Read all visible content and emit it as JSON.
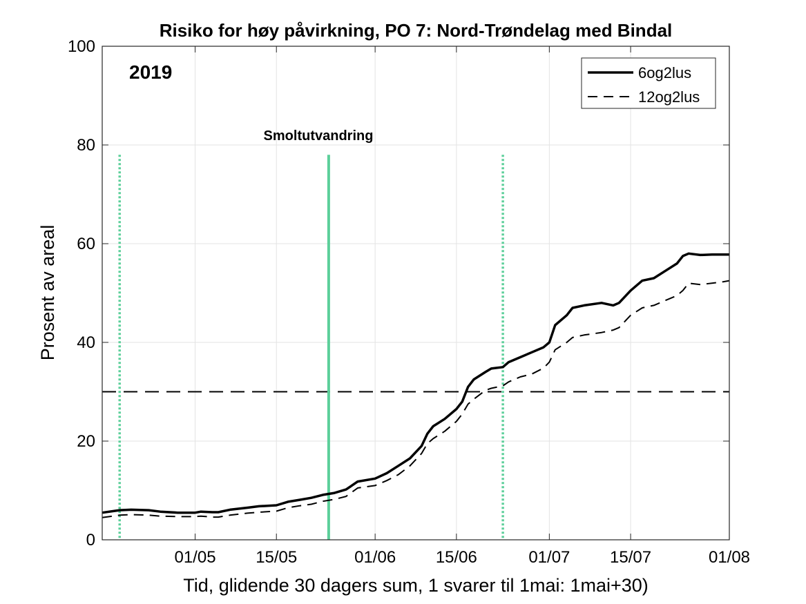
{
  "chart_data": {
    "type": "line",
    "title": "Risiko for høy påvirkning, PO 7: Nord-Trøndelag med Bindal",
    "xlabel": "Tid, glidende 30 dagers sum, 1 svarer til 1mai: 1mai+30)",
    "ylabel": "Prosent av areal",
    "year_label": "2019",
    "annotation": "Smoltutvandring",
    "xlim": [
      "2019-04-15",
      "2019-08-01"
    ],
    "ylim": [
      0,
      100
    ],
    "x_ticks": [
      {
        "date": "2019-05-01",
        "label": "01/05"
      },
      {
        "date": "2019-05-15",
        "label": "15/05"
      },
      {
        "date": "2019-06-01",
        "label": "01/06"
      },
      {
        "date": "2019-06-15",
        "label": "15/06"
      },
      {
        "date": "2019-07-01",
        "label": "01/07"
      },
      {
        "date": "2019-07-15",
        "label": "15/07"
      },
      {
        "date": "2019-08-01",
        "label": "01/08"
      }
    ],
    "y_ticks": [
      0,
      20,
      40,
      60,
      80,
      100
    ],
    "grid": true,
    "legend_position": "top-right",
    "threshold": {
      "y": 30,
      "style": "dashed",
      "color": "#000000"
    },
    "vlines": [
      {
        "date": "2019-04-18",
        "style": "dotted",
        "color": "#5ccf9a"
      },
      {
        "date": "2019-05-24",
        "style": "solid",
        "color": "#5ccf9a"
      },
      {
        "date": "2019-06-23",
        "style": "dotted",
        "color": "#5ccf9a"
      }
    ],
    "series": [
      {
        "name": "6og2lus",
        "style": "solid",
        "color": "#000000",
        "points": [
          [
            "2019-04-15",
            5.5
          ],
          [
            "2019-04-18",
            6.0
          ],
          [
            "2019-04-20",
            6.1
          ],
          [
            "2019-04-23",
            6.0
          ],
          [
            "2019-04-25",
            5.7
          ],
          [
            "2019-04-28",
            5.5
          ],
          [
            "2019-05-01",
            5.5
          ],
          [
            "2019-05-02",
            5.7
          ],
          [
            "2019-05-04",
            5.6
          ],
          [
            "2019-05-05",
            5.6
          ],
          [
            "2019-05-07",
            6.1
          ],
          [
            "2019-05-10",
            6.5
          ],
          [
            "2019-05-12",
            6.8
          ],
          [
            "2019-05-15",
            7.0
          ],
          [
            "2019-05-17",
            7.7
          ],
          [
            "2019-05-19",
            8.1
          ],
          [
            "2019-05-21",
            8.5
          ],
          [
            "2019-05-23",
            9.1
          ],
          [
            "2019-05-25",
            9.5
          ],
          [
            "2019-05-27",
            10.2
          ],
          [
            "2019-05-29",
            11.8
          ],
          [
            "2019-06-01",
            12.4
          ],
          [
            "2019-06-03",
            13.5
          ],
          [
            "2019-06-05",
            15.0
          ],
          [
            "2019-06-07",
            16.5
          ],
          [
            "2019-06-09",
            19.0
          ],
          [
            "2019-06-10",
            21.5
          ],
          [
            "2019-06-11",
            23.0
          ],
          [
            "2019-06-13",
            24.5
          ],
          [
            "2019-06-15",
            26.5
          ],
          [
            "2019-06-16",
            28.0
          ],
          [
            "2019-06-17",
            31.0
          ],
          [
            "2019-06-18",
            32.5
          ],
          [
            "2019-06-20",
            34.0
          ],
          [
            "2019-06-21",
            34.7
          ],
          [
            "2019-06-23",
            35.0
          ],
          [
            "2019-06-24",
            36.0
          ],
          [
            "2019-06-26",
            37.0
          ],
          [
            "2019-06-28",
            38.0
          ],
          [
            "2019-06-30",
            39.0
          ],
          [
            "2019-07-01",
            40.0
          ],
          [
            "2019-07-02",
            43.5
          ],
          [
            "2019-07-04",
            45.5
          ],
          [
            "2019-07-05",
            47.0
          ],
          [
            "2019-07-07",
            47.5
          ],
          [
            "2019-07-10",
            48.0
          ],
          [
            "2019-07-12",
            47.5
          ],
          [
            "2019-07-13",
            48.0
          ],
          [
            "2019-07-15",
            50.5
          ],
          [
            "2019-07-17",
            52.5
          ],
          [
            "2019-07-19",
            53.0
          ],
          [
            "2019-07-21",
            54.5
          ],
          [
            "2019-07-23",
            56.0
          ],
          [
            "2019-07-24",
            57.5
          ],
          [
            "2019-07-25",
            58.0
          ],
          [
            "2019-07-27",
            57.7
          ],
          [
            "2019-07-29",
            57.8
          ],
          [
            "2019-07-31",
            57.8
          ],
          [
            "2019-08-01",
            57.8
          ]
        ]
      },
      {
        "name": "12og2lus",
        "style": "dashed",
        "color": "#000000",
        "points": [
          [
            "2019-04-15",
            4.5
          ],
          [
            "2019-04-18",
            5.0
          ],
          [
            "2019-04-20",
            5.1
          ],
          [
            "2019-04-23",
            5.0
          ],
          [
            "2019-04-25",
            4.8
          ],
          [
            "2019-04-28",
            4.7
          ],
          [
            "2019-05-01",
            4.7
          ],
          [
            "2019-05-02",
            4.8
          ],
          [
            "2019-05-04",
            4.6
          ],
          [
            "2019-05-05",
            4.6
          ],
          [
            "2019-05-07",
            5.0
          ],
          [
            "2019-05-10",
            5.4
          ],
          [
            "2019-05-12",
            5.6
          ],
          [
            "2019-05-15",
            5.8
          ],
          [
            "2019-05-17",
            6.5
          ],
          [
            "2019-05-19",
            6.9
          ],
          [
            "2019-05-21",
            7.2
          ],
          [
            "2019-05-23",
            7.8
          ],
          [
            "2019-05-25",
            8.2
          ],
          [
            "2019-05-27",
            8.8
          ],
          [
            "2019-05-29",
            10.5
          ],
          [
            "2019-06-01",
            11.0
          ],
          [
            "2019-06-03",
            12.0
          ],
          [
            "2019-06-05",
            13.2
          ],
          [
            "2019-06-07",
            15.0
          ],
          [
            "2019-06-09",
            17.5
          ],
          [
            "2019-06-10",
            19.5
          ],
          [
            "2019-06-11",
            20.5
          ],
          [
            "2019-06-13",
            22.0
          ],
          [
            "2019-06-15",
            24.0
          ],
          [
            "2019-06-16",
            25.5
          ],
          [
            "2019-06-17",
            27.5
          ],
          [
            "2019-06-18",
            28.5
          ],
          [
            "2019-06-20",
            30.3
          ],
          [
            "2019-06-21",
            30.7
          ],
          [
            "2019-06-23",
            31.2
          ],
          [
            "2019-06-24",
            32.0
          ],
          [
            "2019-06-26",
            33.0
          ],
          [
            "2019-06-28",
            33.6
          ],
          [
            "2019-06-30",
            34.8
          ],
          [
            "2019-07-01",
            36.0
          ],
          [
            "2019-07-02",
            38.5
          ],
          [
            "2019-07-04",
            40.0
          ],
          [
            "2019-07-05",
            41.0
          ],
          [
            "2019-07-07",
            41.5
          ],
          [
            "2019-07-10",
            42.0
          ],
          [
            "2019-07-12",
            42.5
          ],
          [
            "2019-07-13",
            43.0
          ],
          [
            "2019-07-15",
            45.5
          ],
          [
            "2019-07-17",
            47.0
          ],
          [
            "2019-07-19",
            47.5
          ],
          [
            "2019-07-21",
            48.5
          ],
          [
            "2019-07-23",
            49.5
          ],
          [
            "2019-07-24",
            50.5
          ],
          [
            "2019-07-25",
            52.0
          ],
          [
            "2019-07-27",
            51.7
          ],
          [
            "2019-07-29",
            52.0
          ],
          [
            "2019-07-31",
            52.3
          ],
          [
            "2019-08-01",
            52.5
          ]
        ]
      }
    ]
  }
}
